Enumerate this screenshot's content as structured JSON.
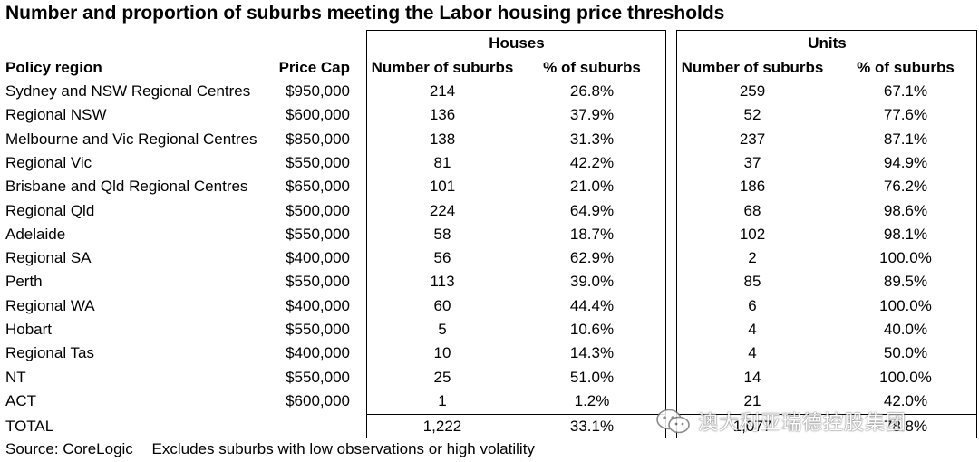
{
  "title": "Number and proportion of suburbs meeting the Labor housing price thresholds",
  "groups": {
    "houses": "Houses",
    "units": "Units"
  },
  "columns": {
    "region": "Policy region",
    "cap": "Price Cap",
    "houses_num": "Number of suburbs",
    "houses_pct": "% of suburbs",
    "units_num": "Number of suburbs",
    "units_pct": "% of suburbs"
  },
  "chart_data": {
    "type": "table",
    "title": "Number and proportion of suburbs meeting the Labor housing price thresholds",
    "rows": [
      {
        "region": "Sydney and NSW Regional Centres",
        "cap": "$950,000",
        "houses_num": "214",
        "houses_pct": "26.8%",
        "units_num": "259",
        "units_pct": "67.1%"
      },
      {
        "region": "Regional NSW",
        "cap": "$600,000",
        "houses_num": "136",
        "houses_pct": "37.9%",
        "units_num": "52",
        "units_pct": "77.6%"
      },
      {
        "region": "Melbourne and Vic Regional Centres",
        "cap": "$850,000",
        "houses_num": "138",
        "houses_pct": "31.3%",
        "units_num": "237",
        "units_pct": "87.1%"
      },
      {
        "region": "Regional Vic",
        "cap": "$550,000",
        "houses_num": "81",
        "houses_pct": "42.2%",
        "units_num": "37",
        "units_pct": "94.9%"
      },
      {
        "region": "Brisbane and Qld Regional Centres",
        "cap": "$650,000",
        "houses_num": "101",
        "houses_pct": "21.0%",
        "units_num": "186",
        "units_pct": "76.2%"
      },
      {
        "region": "Regional Qld",
        "cap": "$500,000",
        "houses_num": "224",
        "houses_pct": "64.9%",
        "units_num": "68",
        "units_pct": "98.6%"
      },
      {
        "region": "Adelaide",
        "cap": "$550,000",
        "houses_num": "58",
        "houses_pct": "18.7%",
        "units_num": "102",
        "units_pct": "98.1%"
      },
      {
        "region": "Regional SA",
        "cap": "$400,000",
        "houses_num": "56",
        "houses_pct": "62.9%",
        "units_num": "2",
        "units_pct": "100.0%"
      },
      {
        "region": "Perth",
        "cap": "$550,000",
        "houses_num": "113",
        "houses_pct": "39.0%",
        "units_num": "85",
        "units_pct": "89.5%"
      },
      {
        "region": "Regional WA",
        "cap": "$400,000",
        "houses_num": "60",
        "houses_pct": "44.4%",
        "units_num": "6",
        "units_pct": "100.0%"
      },
      {
        "region": "Hobart",
        "cap": "$550,000",
        "houses_num": "5",
        "houses_pct": "10.6%",
        "units_num": "4",
        "units_pct": "40.0%"
      },
      {
        "region": "Regional Tas",
        "cap": "$400,000",
        "houses_num": "10",
        "houses_pct": "14.3%",
        "units_num": "4",
        "units_pct": "50.0%"
      },
      {
        "region": "NT",
        "cap": "$550,000",
        "houses_num": "25",
        "houses_pct": "51.0%",
        "units_num": "14",
        "units_pct": "100.0%"
      },
      {
        "region": "ACT",
        "cap": "$600,000",
        "houses_num": "1",
        "houses_pct": "1.2%",
        "units_num": "21",
        "units_pct": "42.0%"
      }
    ],
    "total": {
      "region": "TOTAL",
      "cap": "",
      "houses_num": "1,222",
      "houses_pct": "33.1%",
      "units_num": "1,077",
      "units_pct": "78.8%"
    }
  },
  "source": {
    "label": "Source:  CoreLogic",
    "note": "Excludes suburbs with low observations or high volatility"
  },
  "watermark": {
    "text": "澳大利亚瑞德控股集团",
    "icon": "wechat-icon"
  }
}
